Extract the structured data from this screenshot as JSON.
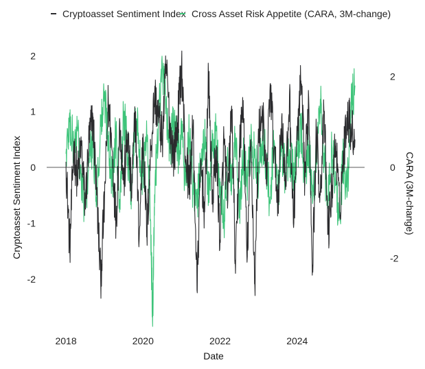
{
  "chart_data": {
    "type": "line",
    "title": "",
    "xlabel": "Date",
    "ylabel": "Cryptoasset Sentiment Index",
    "y2label": "CARA (3M-change)",
    "legend_position": "top",
    "grid": false,
    "x_range": [
      2017.5,
      2025.75
    ],
    "x_ticks": [
      "2018",
      "2020",
      "2022",
      "2024"
    ],
    "y_left_range": [
      -2.9,
      2.2
    ],
    "y_left_ticks": [
      "2",
      "1",
      "0",
      "-1",
      "-2"
    ],
    "y_right_range": [
      -3.56,
      2.7
    ],
    "y_right_ticks": [
      "2",
      "0",
      "-2"
    ],
    "zero_line": true,
    "colors": {
      "black_series": "#2b2b2e",
      "green_series": "#3ec47a"
    },
    "series": [
      {
        "name": "Cryptoasset Sentiment Index",
        "axis": "left",
        "color_key": "black_series",
        "x": [
          2018.0,
          2018.1,
          2018.2,
          2018.3,
          2018.4,
          2018.5,
          2018.6,
          2018.7,
          2018.8,
          2018.9,
          2019.0,
          2019.1,
          2019.2,
          2019.3,
          2019.4,
          2019.5,
          2019.6,
          2019.7,
          2019.8,
          2019.9,
          2020.0,
          2020.1,
          2020.2,
          2020.3,
          2020.4,
          2020.5,
          2020.6,
          2020.7,
          2020.8,
          2020.9,
          2021.0,
          2021.1,
          2021.2,
          2021.3,
          2021.4,
          2021.5,
          2021.6,
          2021.7,
          2021.8,
          2021.9,
          2022.0,
          2022.1,
          2022.2,
          2022.3,
          2022.4,
          2022.5,
          2022.6,
          2022.7,
          2022.8,
          2022.9,
          2023.0,
          2023.1,
          2023.2,
          2023.3,
          2023.4,
          2023.5,
          2023.6,
          2023.7,
          2023.8,
          2023.9,
          2024.0,
          2024.1,
          2024.2,
          2024.3,
          2024.4,
          2024.5,
          2024.6,
          2024.7,
          2024.8,
          2024.9,
          2025.0,
          2025.1,
          2025.2,
          2025.3,
          2025.4,
          2025.5
        ],
        "values": [
          0.1,
          -1.45,
          0.35,
          -0.2,
          0.4,
          -0.7,
          0.5,
          0.9,
          -0.5,
          -2.0,
          -0.6,
          1.2,
          0.3,
          -1.0,
          0.8,
          -0.3,
          0.6,
          -0.5,
          1.0,
          -1.3,
          0.6,
          -1.2,
          0.3,
          1.3,
          0.9,
          0.5,
          1.85,
          0.7,
          0.2,
          0.8,
          1.85,
          0.2,
          -0.3,
          0.7,
          -2.2,
          0.1,
          -0.8,
          1.6,
          -0.6,
          0.3,
          -1.3,
          0.5,
          -0.6,
          1.1,
          -1.9,
          0.3,
          1.2,
          -1.7,
          0.5,
          -2.1,
          0.6,
          1.0,
          -0.3,
          1.5,
          0.3,
          -0.6,
          0.9,
          -0.4,
          1.3,
          -1.0,
          0.5,
          1.55,
          -0.2,
          1.25,
          -1.75,
          0.6,
          -0.5,
          1.0,
          -1.2,
          -0.4,
          0.5,
          -0.8,
          0.2,
          1.0,
          0.7,
          0.5
        ],
        "dense_variation": 0.45
      },
      {
        "name": "Cross Asset Risk Appetite (CARA, 3M-change)",
        "axis": "right",
        "color_key": "green_series",
        "x": [
          2018.0,
          2018.1,
          2018.2,
          2018.3,
          2018.4,
          2018.5,
          2018.6,
          2018.7,
          2018.8,
          2018.9,
          2019.0,
          2019.1,
          2019.2,
          2019.3,
          2019.4,
          2019.5,
          2019.6,
          2019.7,
          2019.8,
          2019.9,
          2020.0,
          2020.1,
          2020.2,
          2020.25,
          2020.3,
          2020.4,
          2020.5,
          2020.6,
          2020.7,
          2020.8,
          2020.9,
          2021.0,
          2021.1,
          2021.2,
          2021.3,
          2021.4,
          2021.5,
          2021.6,
          2021.7,
          2021.8,
          2021.9,
          2022.0,
          2022.1,
          2022.2,
          2022.3,
          2022.4,
          2022.5,
          2022.6,
          2022.7,
          2022.8,
          2022.9,
          2023.0,
          2023.1,
          2023.2,
          2023.3,
          2023.4,
          2023.5,
          2023.6,
          2023.7,
          2023.8,
          2023.9,
          2024.0,
          2024.1,
          2024.2,
          2024.3,
          2024.4,
          2024.5,
          2024.6,
          2024.7,
          2024.8,
          2024.9,
          2025.0,
          2025.1,
          2025.2,
          2025.3,
          2025.4,
          2025.5
        ],
        "values": [
          0.3,
          1.0,
          0.4,
          0.8,
          -0.4,
          -0.9,
          0.2,
          0.5,
          -0.6,
          0.9,
          1.5,
          0.7,
          -0.4,
          0.9,
          -0.7,
          1.2,
          0.3,
          -0.5,
          1.3,
          0.4,
          -0.2,
          0.7,
          -1.2,
          -3.5,
          -0.6,
          1.1,
          2.2,
          1.3,
          0.4,
          1.0,
          0.3,
          0.9,
          -0.4,
          0.7,
          -0.6,
          -0.9,
          0.2,
          0.6,
          -0.5,
          0.4,
          0.8,
          -0.6,
          -1.2,
          0.3,
          -0.5,
          0.6,
          -1.0,
          0.2,
          -0.4,
          0.5,
          0.2,
          -0.3,
          0.7,
          0.1,
          -0.8,
          0.6,
          -0.6,
          0.5,
          -0.3,
          0.4,
          -0.2,
          0.3,
          0.9,
          -0.4,
          0.5,
          -0.8,
          0.3,
          1.5,
          0.2,
          -0.9,
          0.5,
          -0.4,
          -1.1,
          0.2,
          -0.6,
          1.4,
          1.8
        ],
        "dense_variation": 0.55
      }
    ]
  }
}
